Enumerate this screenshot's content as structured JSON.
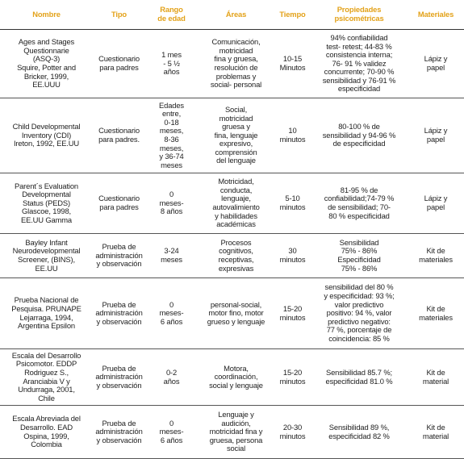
{
  "table": {
    "header": [
      [
        "Nombre"
      ],
      [
        "Tipo"
      ],
      [
        "Rango",
        "de edad"
      ],
      [
        "Áreas"
      ],
      [
        "Tiempo"
      ],
      [
        "Propiedades",
        "psicométricas"
      ],
      [
        "Materiales"
      ]
    ],
    "rows": [
      [
        [
          "Ages and Stages",
          "Questionnarie",
          "(ASQ-3)",
          "Squire, Potter and",
          "Bricker, 1999,",
          "EE.UUU"
        ],
        [
          "Cuestionario",
          "para padres"
        ],
        [
          "1 mes",
          "- 5 ½",
          "años"
        ],
        [
          "Comunicación,",
          "motricidad",
          "fina y gruesa,",
          "resolución de",
          "problemas y",
          "social- personal"
        ],
        [
          "10-15",
          "Minutos"
        ],
        [
          "94% confiabilidad",
          "test- retest; 44-83 %",
          "consistencia interna;",
          "76- 91 % validez",
          "concurrente; 70-90 %",
          "sensibilidad y 76-91 %",
          "especificidad"
        ],
        [
          "Lápiz y",
          "papel"
        ]
      ],
      [
        [
          "Child Developmental",
          "Inventory (CDI)",
          "Ireton, 1992, EE.UU"
        ],
        [
          "Cuestionario",
          "para padres."
        ],
        [
          "Edades",
          "entre,",
          "0-18",
          "meses,",
          "8-36",
          "meses,",
          "y 36-74",
          "meses"
        ],
        [
          "Social,",
          "motricidad",
          "gruesa y",
          "fina, lenguaje",
          "expresivo,",
          "comprensión",
          "del lenguaje"
        ],
        [
          "10",
          "minutos"
        ],
        [
          "80-100 % de",
          "sensibilidad y 94-96 %",
          "de especificidad"
        ],
        [
          "Lápiz y",
          "papel"
        ]
      ],
      [
        [
          "Parent´s Evaluation",
          "Developmental",
          "Status (PEDS)",
          "Glascoe, 1998,",
          "EE.UU Gamma"
        ],
        [
          "Cuestionario",
          "para padres"
        ],
        [
          "0",
          "meses-",
          "8 años"
        ],
        [
          "Motricidad,",
          "conducta,",
          "lenguaje,",
          "autovalimiento",
          "y habilidades",
          "académicas"
        ],
        [
          "5-10",
          "minutos"
        ],
        [
          "81-95 % de",
          "confiabilidad;74-79 %",
          "de sensibilidad; 70-",
          "80 % especificidad"
        ],
        [
          "Lápiz y",
          "papel"
        ]
      ],
      [
        [
          "Bayley Infant",
          "Neurodevelopmental",
          "Screener, (BINS),",
          "EE.UU"
        ],
        [
          "Prueba de",
          "administración",
          "y observación"
        ],
        [
          "3-24",
          "meses"
        ],
        [
          "Procesos",
          "cognitivos,",
          "receptivas,",
          "expresivas"
        ],
        [
          "30",
          "minutos"
        ],
        [
          "Sensibilidad",
          "75% - 86%",
          "Especificidad",
          "75% - 86%"
        ],
        [
          "Kit de",
          "materiales"
        ]
      ],
      [
        [
          "Prueba Nacional de",
          "Pesquisa. PRUNAPE",
          "Lejarraga, 1994,",
          "Argentina Epsilon"
        ],
        [
          "Prueba de",
          "administración",
          "y observación"
        ],
        [
          "0",
          "meses-",
          "6 años"
        ],
        [
          "personal-social,",
          "motor fino, motor",
          "grueso y lenguaje"
        ],
        [
          "15-20",
          "minutos"
        ],
        [
          "sensibilidad del 80 %",
          "y especificidad: 93 %;",
          "valor predictivo",
          "positivo: 94 %, valor",
          "predictivo negativo:",
          "77 %, porcentaje de",
          "coincidencia: 85 %"
        ],
        [
          "Kit de",
          "materiales"
        ]
      ],
      [
        [
          "Escala del Desarrollo",
          "Psicomotor. EDDP",
          "Rodriguez S.,",
          "Aranciabia V y",
          "Undurraga, 2001,",
          "Chile"
        ],
        [
          "Prueba de",
          "administración",
          "y observación"
        ],
        [
          "0-2",
          "años"
        ],
        [
          "Motora,",
          "coordinación,",
          "social y lenguaje"
        ],
        [
          "15-20",
          "minutos"
        ],
        [
          "Sensibilidad 85.7 %;",
          "especificidad 81.0 %"
        ],
        [
          "Kit de",
          "material"
        ]
      ],
      [
        [
          "Escala Abreviada del",
          "Desarrollo. EAD",
          "Ospina, 1999,",
          "Colombia"
        ],
        [
          "Prueba de",
          "administración",
          "y observación"
        ],
        [
          "0",
          "meses-",
          "6 años"
        ],
        [
          "Lenguaje y",
          "audición,",
          "motricidad fina y",
          "gruesa, persona",
          "social"
        ],
        [
          "20-30",
          "minutos"
        ],
        [
          "Sensibilidad 89 %,",
          "especificidad 82 %"
        ],
        [
          "Kit de",
          "material"
        ]
      ]
    ]
  }
}
